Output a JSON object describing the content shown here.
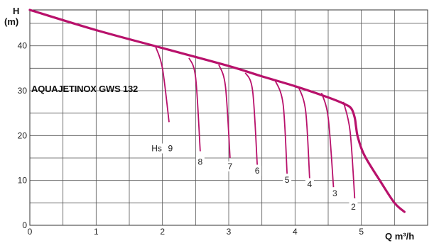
{
  "chart_data": {
    "type": "line",
    "title": "AQUAJETINOX GWS 132",
    "ylabel_top": "H",
    "ylabel_unit": "(m)",
    "xlabel": "Q m³/h",
    "xlim": [
      0,
      6
    ],
    "ylim": [
      0,
      48
    ],
    "x_major_ticks": [
      "0",
      "1",
      "2",
      "3",
      "4",
      "5"
    ],
    "y_major_ticks": [
      "0",
      "10",
      "20",
      "30",
      "40"
    ],
    "minor_grid_step_x": 0.5,
    "minor_grid_step_y": 5,
    "grid": true,
    "curve_color": "#b8116b",
    "hs_prefix": "Hs",
    "main_curve": {
      "x": [
        0,
        1,
        2,
        3,
        3.5,
        4,
        4.5,
        4.75,
        4.85,
        4.9,
        4.92,
        4.95,
        5.05,
        5.3,
        5.5,
        5.65
      ],
      "y": [
        48,
        43.5,
        39.5,
        35.5,
        33.2,
        31,
        28.5,
        27,
        26,
        24,
        22,
        19.5,
        15.5,
        9.5,
        5,
        3
      ]
    },
    "hs_curves": [
      {
        "label": "9",
        "x": [
          1.9,
          2.0,
          2.1
        ],
        "y": [
          39.7,
          35,
          23
        ],
        "label_x": 2.12,
        "label_y": 16.5
      },
      {
        "label": "8",
        "x": [
          2.4,
          2.5,
          2.57
        ],
        "y": [
          37.3,
          33,
          16.5
        ],
        "label_x": 2.57,
        "label_y": 13.5
      },
      {
        "label": "7",
        "x": [
          2.85,
          2.95,
          3.02
        ],
        "y": [
          35.8,
          31,
          15
        ],
        "label_x": 3.02,
        "label_y": 12.5
      },
      {
        "label": "6",
        "x": [
          3.25,
          3.36,
          3.43
        ],
        "y": [
          34,
          30,
          13.5
        ],
        "label_x": 3.43,
        "label_y": 11.5
      },
      {
        "label": "5",
        "x": [
          3.7,
          3.82,
          3.88
        ],
        "y": [
          32.3,
          27,
          11.5
        ],
        "label_x": 3.88,
        "label_y": 9.5
      },
      {
        "label": "4",
        "x": [
          4.05,
          4.16,
          4.22
        ],
        "y": [
          30.9,
          25.5,
          10.5
        ],
        "label_x": 4.22,
        "label_y": 8.5
      },
      {
        "label": "3",
        "x": [
          4.4,
          4.5,
          4.58
        ],
        "y": [
          29.5,
          24,
          8.5
        ],
        "label_x": 4.6,
        "label_y": 6.5
      },
      {
        "label": "2",
        "x": [
          4.73,
          4.83,
          4.9
        ],
        "y": [
          27.5,
          21,
          6
        ],
        "label_x": 4.88,
        "label_y": 3.5
      }
    ]
  }
}
